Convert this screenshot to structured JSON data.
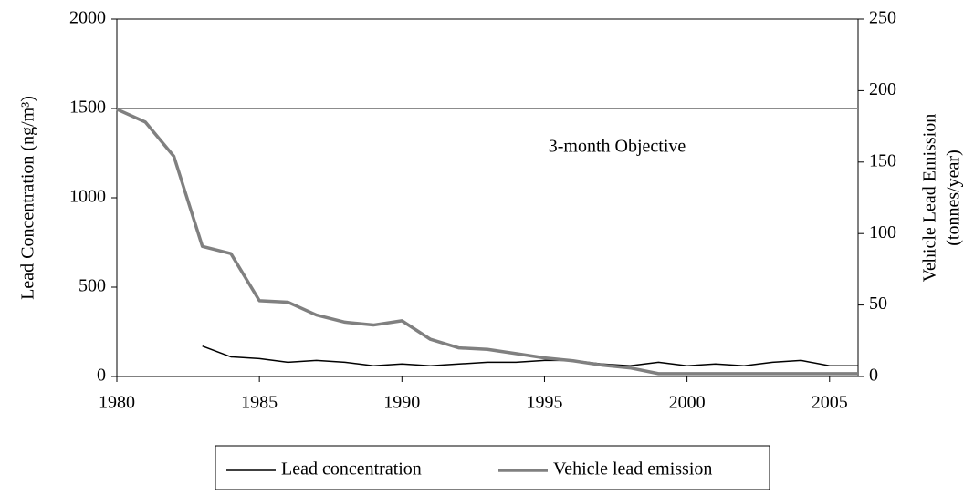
{
  "chart_data": {
    "type": "line",
    "y_label": "Lead Concentration (ng/m³)",
    "y2_label": [
      "Vehicle Lead Emission",
      "(tonnes/year)"
    ],
    "x": [
      1980,
      1981,
      1982,
      1983,
      1984,
      1985,
      1986,
      1987,
      1988,
      1989,
      1990,
      1991,
      1992,
      1993,
      1994,
      1995,
      1996,
      1997,
      1998,
      1999,
      2000,
      2001,
      2002,
      2003,
      2004,
      2005,
      2006
    ],
    "series": [
      {
        "name": "Lead concentration",
        "color": "#000000",
        "axis": "y",
        "values": [
          null,
          null,
          null,
          170,
          110,
          100,
          80,
          90,
          80,
          60,
          70,
          60,
          70,
          80,
          80,
          90,
          90,
          70,
          60,
          80,
          60,
          70,
          60,
          80,
          90,
          60,
          60
        ]
      },
      {
        "name": "Vehicle lead emission",
        "color": "#808080",
        "axis": "y2",
        "values": [
          187,
          178,
          154,
          91,
          86,
          53,
          52,
          43,
          38,
          36,
          39,
          26,
          20,
          19,
          16,
          13,
          11,
          8,
          6,
          2,
          2,
          2,
          2,
          2,
          2,
          2,
          2
        ]
      }
    ],
    "objective": {
      "value": 1500,
      "label": "3-month Objective",
      "color": "#8c8c8c"
    },
    "xlim": [
      1980,
      2006
    ],
    "xticks": [
      1980,
      1985,
      1990,
      1995,
      2000,
      2005
    ],
    "ylim": [
      0,
      2000
    ],
    "yticks": [
      0,
      500,
      1000,
      1500,
      2000
    ],
    "y2lim": [
      0,
      250
    ],
    "y2ticks": [
      0,
      50,
      100,
      150,
      200,
      250
    ],
    "legend": "bottom"
  }
}
